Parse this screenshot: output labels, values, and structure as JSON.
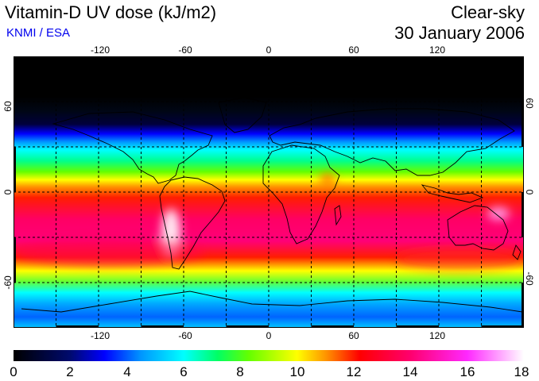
{
  "header": {
    "title": "Vitamin-D UV dose (kJ/m2)",
    "credit": "KNMI / ESA",
    "sky_condition": "Clear-sky",
    "date": "30 January 2006"
  },
  "colors": {
    "credit_text": "#0000ee",
    "border": "#000000",
    "gridline": "#000000",
    "coastline": "#000000"
  },
  "map": {
    "longitude_labels": [
      "-120",
      "-60",
      "0",
      "60",
      "120"
    ],
    "latitude_labels": [
      "60",
      "0",
      "-60"
    ],
    "longitude_range": [
      -180,
      180
    ],
    "latitude_range": [
      -90,
      90
    ],
    "grid_longitudes": [
      -150,
      -120,
      -90,
      -60,
      -30,
      0,
      30,
      60,
      90,
      120,
      150
    ],
    "grid_latitudes": [
      60,
      30,
      0,
      -30,
      -60
    ]
  },
  "colorbar": {
    "ticks": [
      "0",
      "2",
      "4",
      "6",
      "8",
      "10",
      "12",
      "14",
      "16",
      "18"
    ],
    "min": 0,
    "max": 18,
    "gradient": [
      {
        "value": 0,
        "color": "#000000"
      },
      {
        "value": 2,
        "color": "#000a6e"
      },
      {
        "value": 3.2,
        "color": "#0000ff"
      },
      {
        "value": 4.5,
        "color": "#0096ff"
      },
      {
        "value": 6,
        "color": "#00ffff"
      },
      {
        "value": 7.2,
        "color": "#00ff64"
      },
      {
        "value": 8.3,
        "color": "#64ff00"
      },
      {
        "value": 10,
        "color": "#ffff00"
      },
      {
        "value": 11,
        "color": "#ff9600"
      },
      {
        "value": 12.2,
        "color": "#ff0000"
      },
      {
        "value": 14,
        "color": "#ff006e"
      },
      {
        "value": 16,
        "color": "#ff28ff"
      },
      {
        "value": 18,
        "color": "#ffffff"
      }
    ]
  }
}
